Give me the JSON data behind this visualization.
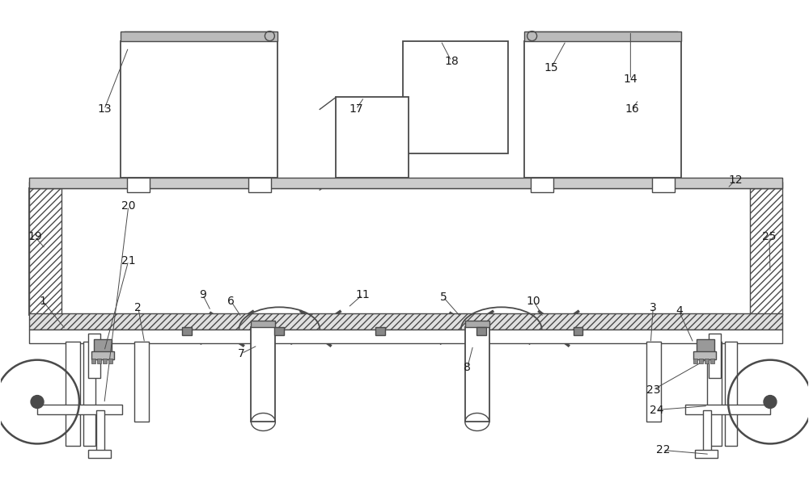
{
  "bg_color": "#ffffff",
  "line_color": "#4a4a4a",
  "lw": 1.0,
  "figsize": [
    10.0,
    6.03
  ],
  "dpi": 100,
  "label_fontsize": 10,
  "label_color": "#1a1a1a"
}
